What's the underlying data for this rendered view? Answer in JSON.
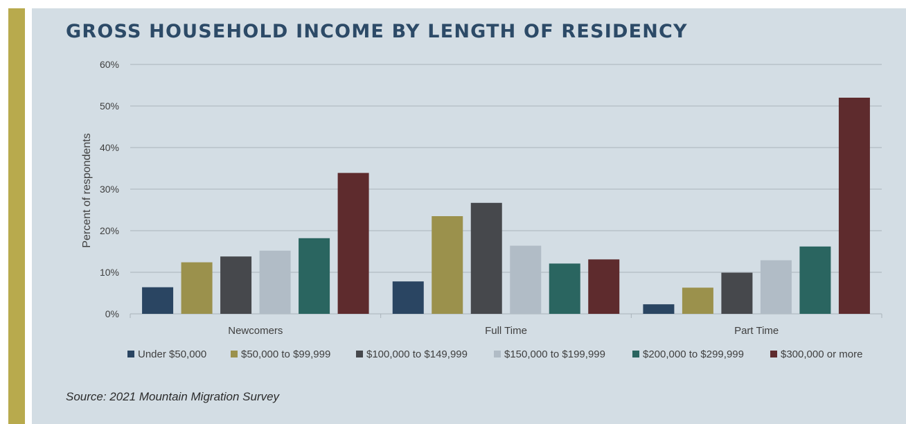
{
  "colors": {
    "accent_bar": "#b8aa4d",
    "panel_background": "#d3dde4",
    "title": "#2c4a67",
    "gridline": "#a9b3ba",
    "axis_text": "#3f3f3f"
  },
  "chart_data": {
    "type": "bar",
    "title": "GROSS HOUSEHOLD INCOME BY LENGTH OF RESIDENCY",
    "xlabel": "",
    "ylabel": "Percent of respondents",
    "ylim": [
      0,
      60
    ],
    "yticks": [
      0,
      10,
      20,
      30,
      40,
      50,
      60
    ],
    "ytick_labels": [
      "0%",
      "10%",
      "20%",
      "30%",
      "40%",
      "50%",
      "60%"
    ],
    "grid": true,
    "legend_position": "bottom",
    "categories": [
      "Newcomers",
      "Full Time",
      "Part Time"
    ],
    "series": [
      {
        "name": "Under $50,000",
        "color": "#2a4562",
        "values": [
          6.4,
          7.8,
          2.3
        ]
      },
      {
        "name": "$50,000 to $99,999",
        "color": "#9b914c",
        "values": [
          12.4,
          23.5,
          6.3
        ]
      },
      {
        "name": "$100,000 to $149,999",
        "color": "#46484c",
        "values": [
          13.8,
          26.7,
          9.9
        ]
      },
      {
        "name": "$150,000 to $199,999",
        "color": "#b1bcc6",
        "values": [
          15.2,
          16.4,
          12.9
        ]
      },
      {
        "name": "$200,000 to $299,999",
        "color": "#2a6560",
        "values": [
          18.2,
          12.1,
          16.2
        ]
      },
      {
        "name": "$300,000 or more",
        "color": "#5e2b2d",
        "values": [
          33.9,
          13.1,
          52.0
        ]
      }
    ]
  },
  "source": "Source: 2021 Mountain Migration Survey"
}
